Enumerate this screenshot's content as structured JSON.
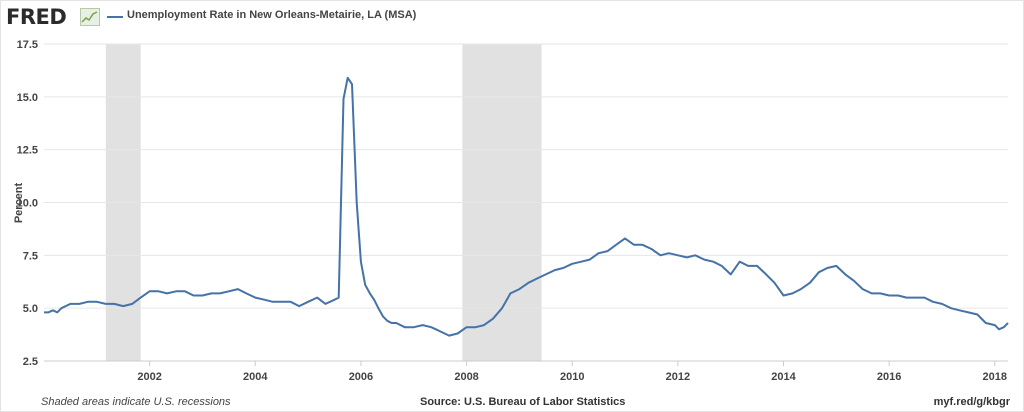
{
  "header": {
    "logo": "FRED",
    "logo_mark_icon": "trend-chart-icon",
    "title": "Unemployment Rate in New Orleans-Metairie, LA (MSA)"
  },
  "footer": {
    "note": "Shaded areas indicate U.S. recessions",
    "source": "Source: U.S. Bureau of Labor Statistics",
    "url": "myf.red/g/kbgr"
  },
  "colors": {
    "series": "#4572a7",
    "recession": "#e1e1e1",
    "grid": "#e6e6e6"
  },
  "chart_data": {
    "type": "line",
    "title": "Unemployment Rate in New Orleans-Metairie, LA (MSA)",
    "xlabel": "",
    "ylabel": "Percent",
    "xlim": [
      2000.0,
      2018.25
    ],
    "ylim": [
      2.5,
      17.5
    ],
    "y_ticks": [
      2.5,
      5.0,
      7.5,
      10.0,
      12.5,
      15.0,
      17.5
    ],
    "y_tick_labels": [
      "2.5",
      "5.0",
      "7.5",
      "10.0",
      "12.5",
      "15.0",
      "17.5"
    ],
    "x_ticks": [
      2002,
      2004,
      2006,
      2008,
      2010,
      2012,
      2014,
      2016,
      2018
    ],
    "x_tick_labels": [
      "2002",
      "2004",
      "2006",
      "2008",
      "2010",
      "2012",
      "2014",
      "2016",
      "2018"
    ],
    "grid": "horizontal",
    "recessions": [
      [
        2001.17,
        2001.83
      ],
      [
        2007.92,
        2009.42
      ]
    ],
    "series": [
      {
        "name": "Unemployment Rate in New Orleans-Metairie, LA (MSA)",
        "x": [
          2000.0,
          2000.08,
          2000.17,
          2000.25,
          2000.33,
          2000.5,
          2000.67,
          2000.83,
          2001.0,
          2001.17,
          2001.33,
          2001.5,
          2001.67,
          2001.83,
          2002.0,
          2002.17,
          2002.33,
          2002.5,
          2002.67,
          2002.83,
          2003.0,
          2003.17,
          2003.33,
          2003.5,
          2003.67,
          2003.83,
          2004.0,
          2004.17,
          2004.33,
          2004.5,
          2004.67,
          2004.83,
          2005.0,
          2005.17,
          2005.33,
          2005.5,
          2005.58,
          2005.67,
          2005.75,
          2005.83,
          2005.92,
          2006.0,
          2006.08,
          2006.17,
          2006.25,
          2006.33,
          2006.42,
          2006.5,
          2006.58,
          2006.67,
          2006.83,
          2007.0,
          2007.17,
          2007.33,
          2007.42,
          2007.5,
          2007.67,
          2007.83,
          2008.0,
          2008.17,
          2008.33,
          2008.5,
          2008.67,
          2008.83,
          2009.0,
          2009.17,
          2009.33,
          2009.5,
          2009.67,
          2009.83,
          2010.0,
          2010.17,
          2010.33,
          2010.5,
          2010.67,
          2010.83,
          2011.0,
          2011.17,
          2011.33,
          2011.5,
          2011.67,
          2011.83,
          2012.0,
          2012.17,
          2012.33,
          2012.5,
          2012.67,
          2012.83,
          2013.0,
          2013.17,
          2013.33,
          2013.5,
          2013.67,
          2013.83,
          2014.0,
          2014.17,
          2014.33,
          2014.5,
          2014.67,
          2014.83,
          2015.0,
          2015.17,
          2015.33,
          2015.5,
          2015.67,
          2015.83,
          2016.0,
          2016.17,
          2016.33,
          2016.5,
          2016.67,
          2016.83,
          2017.0,
          2017.17,
          2017.33,
          2017.5,
          2017.67,
          2017.83,
          2018.0,
          2018.08,
          2018.17,
          2018.25
        ],
        "y": [
          4.8,
          4.8,
          4.9,
          4.8,
          5.0,
          5.2,
          5.2,
          5.3,
          5.3,
          5.2,
          5.2,
          5.1,
          5.2,
          5.5,
          5.8,
          5.8,
          5.7,
          5.8,
          5.8,
          5.6,
          5.6,
          5.7,
          5.7,
          5.8,
          5.9,
          5.7,
          5.5,
          5.4,
          5.3,
          5.3,
          5.3,
          5.1,
          5.3,
          5.5,
          5.2,
          5.4,
          5.5,
          14.9,
          15.9,
          15.6,
          10.0,
          7.2,
          6.1,
          5.7,
          5.4,
          5.0,
          4.6,
          4.4,
          4.3,
          4.3,
          4.1,
          4.1,
          4.2,
          4.1,
          4.0,
          3.9,
          3.7,
          3.8,
          4.1,
          4.1,
          4.2,
          4.5,
          5.0,
          5.7,
          5.9,
          6.2,
          6.4,
          6.6,
          6.8,
          6.9,
          7.1,
          7.2,
          7.3,
          7.6,
          7.7,
          8.0,
          8.3,
          8.0,
          8.0,
          7.8,
          7.5,
          7.6,
          7.5,
          7.4,
          7.5,
          7.3,
          7.2,
          7.0,
          6.6,
          7.2,
          7.0,
          7.0,
          6.6,
          6.2,
          5.6,
          5.7,
          5.9,
          6.2,
          6.7,
          6.9,
          7.0,
          6.6,
          6.3,
          5.9,
          5.7,
          5.7,
          5.6,
          5.6,
          5.5,
          5.5,
          5.5,
          5.3,
          5.2,
          5.0,
          4.9,
          4.8,
          4.7,
          4.3,
          4.2,
          4.0,
          4.1,
          4.3
        ]
      }
    ]
  }
}
